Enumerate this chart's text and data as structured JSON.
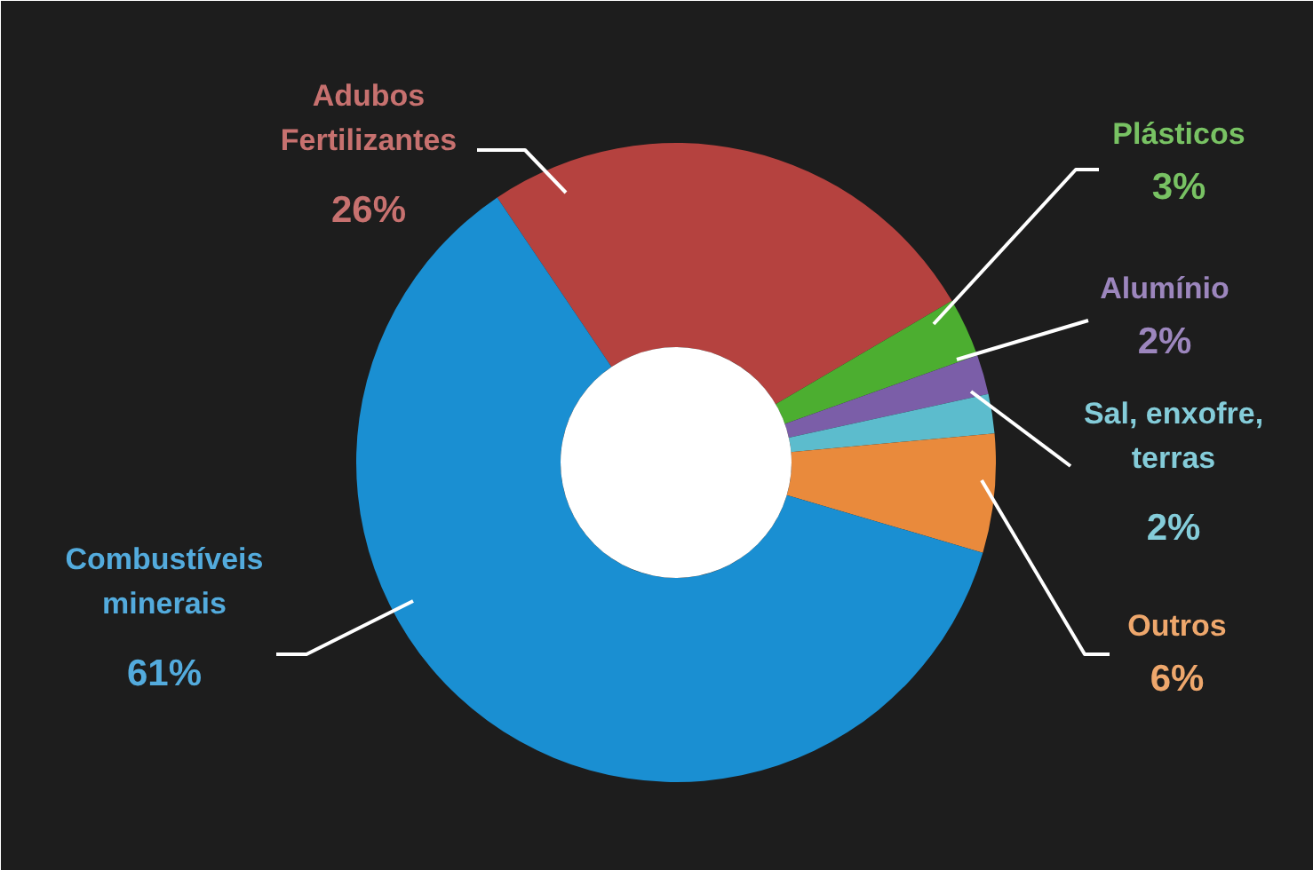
{
  "chart_data": {
    "type": "donut",
    "categories": [
      "Adubos\nFertilizantes",
      "Plásticos",
      "Alumínio",
      "Sal, enxofre,\nterras",
      "Outros",
      "Combustíveis\nminerais"
    ],
    "values": [
      26,
      3,
      2,
      2,
      6,
      61
    ],
    "value_labels": [
      "26%",
      "3%",
      "2%",
      "2%",
      "6%",
      "61%"
    ],
    "colors": [
      "#b5423f",
      "#4cae30",
      "#7b5ea8",
      "#5cbccd",
      "#e98a3c",
      "#1a8fd2"
    ]
  }
}
